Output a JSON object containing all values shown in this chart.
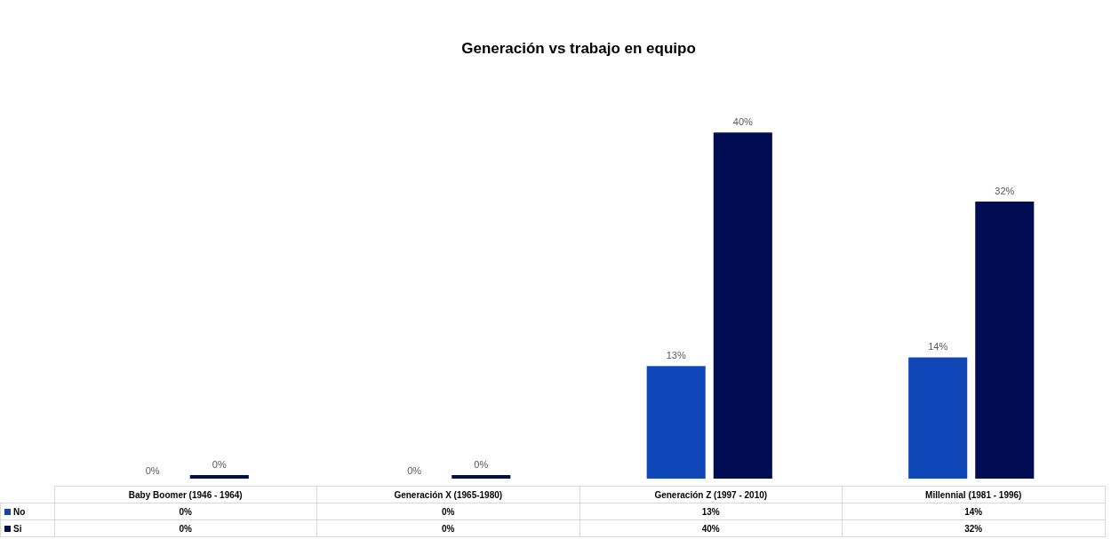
{
  "chart_data": {
    "type": "bar",
    "title": "Generación vs trabajo en equipo",
    "categories": [
      "Baby Boomer (1946 - 1964)",
      "Generación X (1965-1980)",
      "Generación Z (1997 - 2010)",
      "Millennial (1981 - 1996)"
    ],
    "series": [
      {
        "name": "No",
        "color": "#0f47b8",
        "values": [
          0,
          0,
          13,
          14
        ],
        "value_labels": [
          "0%",
          "0%",
          "13%",
          "14%"
        ]
      },
      {
        "name": "Si",
        "color": "#000d52",
        "values": [
          0.4,
          0.4,
          40,
          32
        ],
        "value_labels": [
          "0%",
          "0%",
          "40%",
          "32%"
        ]
      }
    ],
    "legend": "bottom"
  }
}
